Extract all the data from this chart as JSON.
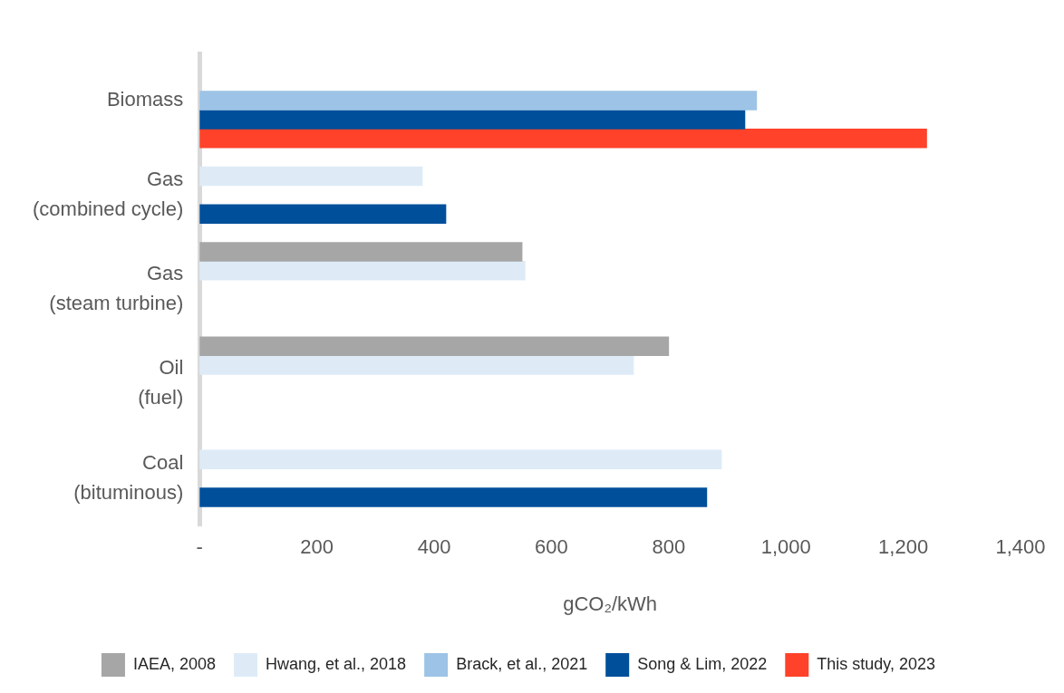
{
  "chart_data": {
    "type": "bar",
    "orientation": "horizontal",
    "xlabel": "gCO₂/kWh",
    "categories": [
      "Biomass",
      "Gas\n(combined cycle)",
      "Gas\n(steam turbine)",
      "Oil\n(fuel)",
      "Coal\n(bituminous)"
    ],
    "series": [
      {
        "name": "IAEA, 2008",
        "color": "#a6a6a6",
        "values": [
          null,
          null,
          550,
          800,
          null
        ]
      },
      {
        "name": "Hwang, et al., 2018",
        "color": "#deebf7",
        "values": [
          null,
          380,
          555,
          740,
          890
        ]
      },
      {
        "name": "Brack, et al., 2021",
        "color": "#9dc3e6",
        "values": [
          950,
          null,
          null,
          null,
          null
        ]
      },
      {
        "name": "Song & Lim, 2022",
        "color": "#004f9a",
        "values": [
          930,
          420,
          null,
          null,
          865
        ]
      },
      {
        "name": "This study, 2023",
        "color": "#ff4229",
        "values": [
          1240,
          null,
          null,
          null,
          null
        ]
      }
    ],
    "xlim": [
      0,
      1400
    ],
    "xticks": [
      {
        "value": 0,
        "label": "-"
      },
      200,
      400,
      600,
      800,
      {
        "value": 1000,
        "label": "1,000"
      },
      {
        "value": 1200,
        "label": "1,200"
      },
      {
        "value": 1400,
        "label": "1,400"
      }
    ],
    "grid": false,
    "legend": "bottom"
  }
}
